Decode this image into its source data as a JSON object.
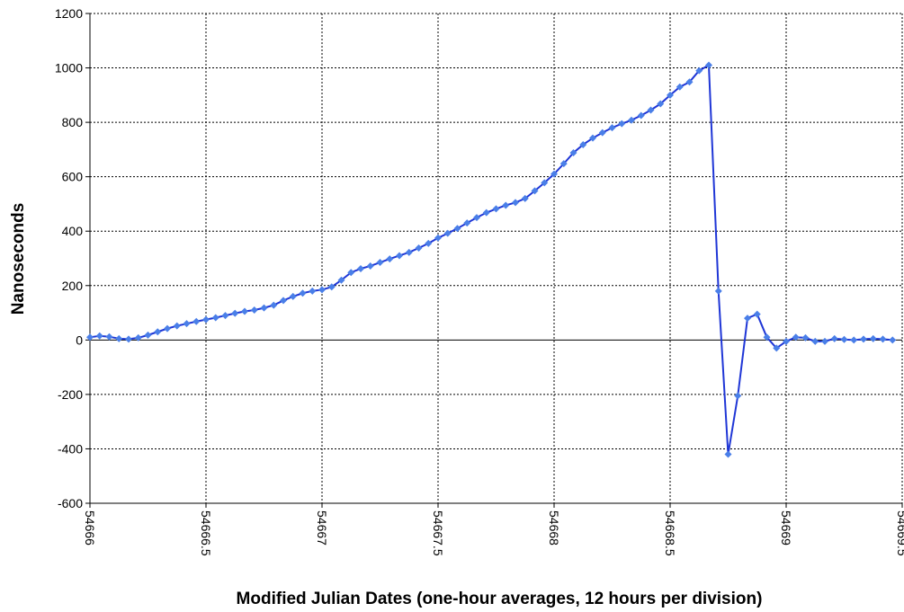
{
  "chart_data": {
    "type": "line",
    "ylabel": "Nanoseconds",
    "xlabel": "Modified Julian Dates (one-hour averages, 12 hours per division)",
    "x": [
      54666,
      54666.0417,
      54666.0833,
      54666.125,
      54666.1667,
      54666.2083,
      54666.25,
      54666.2917,
      54666.3333,
      54666.375,
      54666.4167,
      54666.4583,
      54666.5,
      54666.5417,
      54666.5833,
      54666.625,
      54666.6667,
      54666.7083,
      54666.75,
      54666.7917,
      54666.8333,
      54666.875,
      54666.9167,
      54666.9583,
      54667,
      54667.0417,
      54667.0833,
      54667.125,
      54667.1667,
      54667.2083,
      54667.25,
      54667.2917,
      54667.3333,
      54667.375,
      54667.4167,
      54667.4583,
      54667.5,
      54667.5417,
      54667.5833,
      54667.625,
      54667.6667,
      54667.7083,
      54667.75,
      54667.7917,
      54667.8333,
      54667.875,
      54667.9167,
      54667.9583,
      54668,
      54668.0417,
      54668.0833,
      54668.125,
      54668.1667,
      54668.2083,
      54668.25,
      54668.2917,
      54668.3333,
      54668.375,
      54668.4167,
      54668.4583,
      54668.5,
      54668.5417,
      54668.5833,
      54668.625,
      54668.6667,
      54668.7083,
      54668.75,
      54668.7917,
      54668.8333,
      54668.875,
      54668.9167,
      54668.9583,
      54669,
      54669.0417,
      54669.0833,
      54669.125,
      54669.1667,
      54669.2083,
      54669.25,
      54669.2917,
      54669.3333,
      54669.375,
      54669.4167,
      54669.4583
    ],
    "series": [
      {
        "name": "Nanoseconds",
        "color": "#1f36d6",
        "marker_color": "#4a7fe8",
        "values": [
          10,
          15,
          12,
          5,
          3,
          8,
          18,
          30,
          42,
          52,
          60,
          68,
          75,
          82,
          90,
          98,
          105,
          110,
          118,
          128,
          145,
          160,
          172,
          180,
          185,
          195,
          220,
          248,
          262,
          272,
          285,
          298,
          310,
          322,
          338,
          355,
          375,
          392,
          410,
          430,
          450,
          468,
          482,
          495,
          505,
          520,
          548,
          578,
          610,
          648,
          688,
          718,
          742,
          762,
          780,
          795,
          808,
          825,
          845,
          868,
          900,
          930,
          948,
          990,
          1010,
          180,
          -420,
          -205,
          80,
          95,
          10,
          -30,
          -5,
          10,
          8,
          -5,
          -5,
          5,
          2,
          0,
          3,
          5,
          3,
          0
        ]
      }
    ],
    "xlim": [
      54666,
      54669.5
    ],
    "xticks": [
      54666,
      54666.5,
      54667,
      54667.5,
      54668,
      54668.5,
      54669,
      54669.5
    ],
    "ylim": [
      -600,
      1200
    ],
    "yticks": [
      -600,
      -400,
      -200,
      0,
      200,
      400,
      600,
      800,
      1000,
      1200
    ],
    "grid": true
  }
}
